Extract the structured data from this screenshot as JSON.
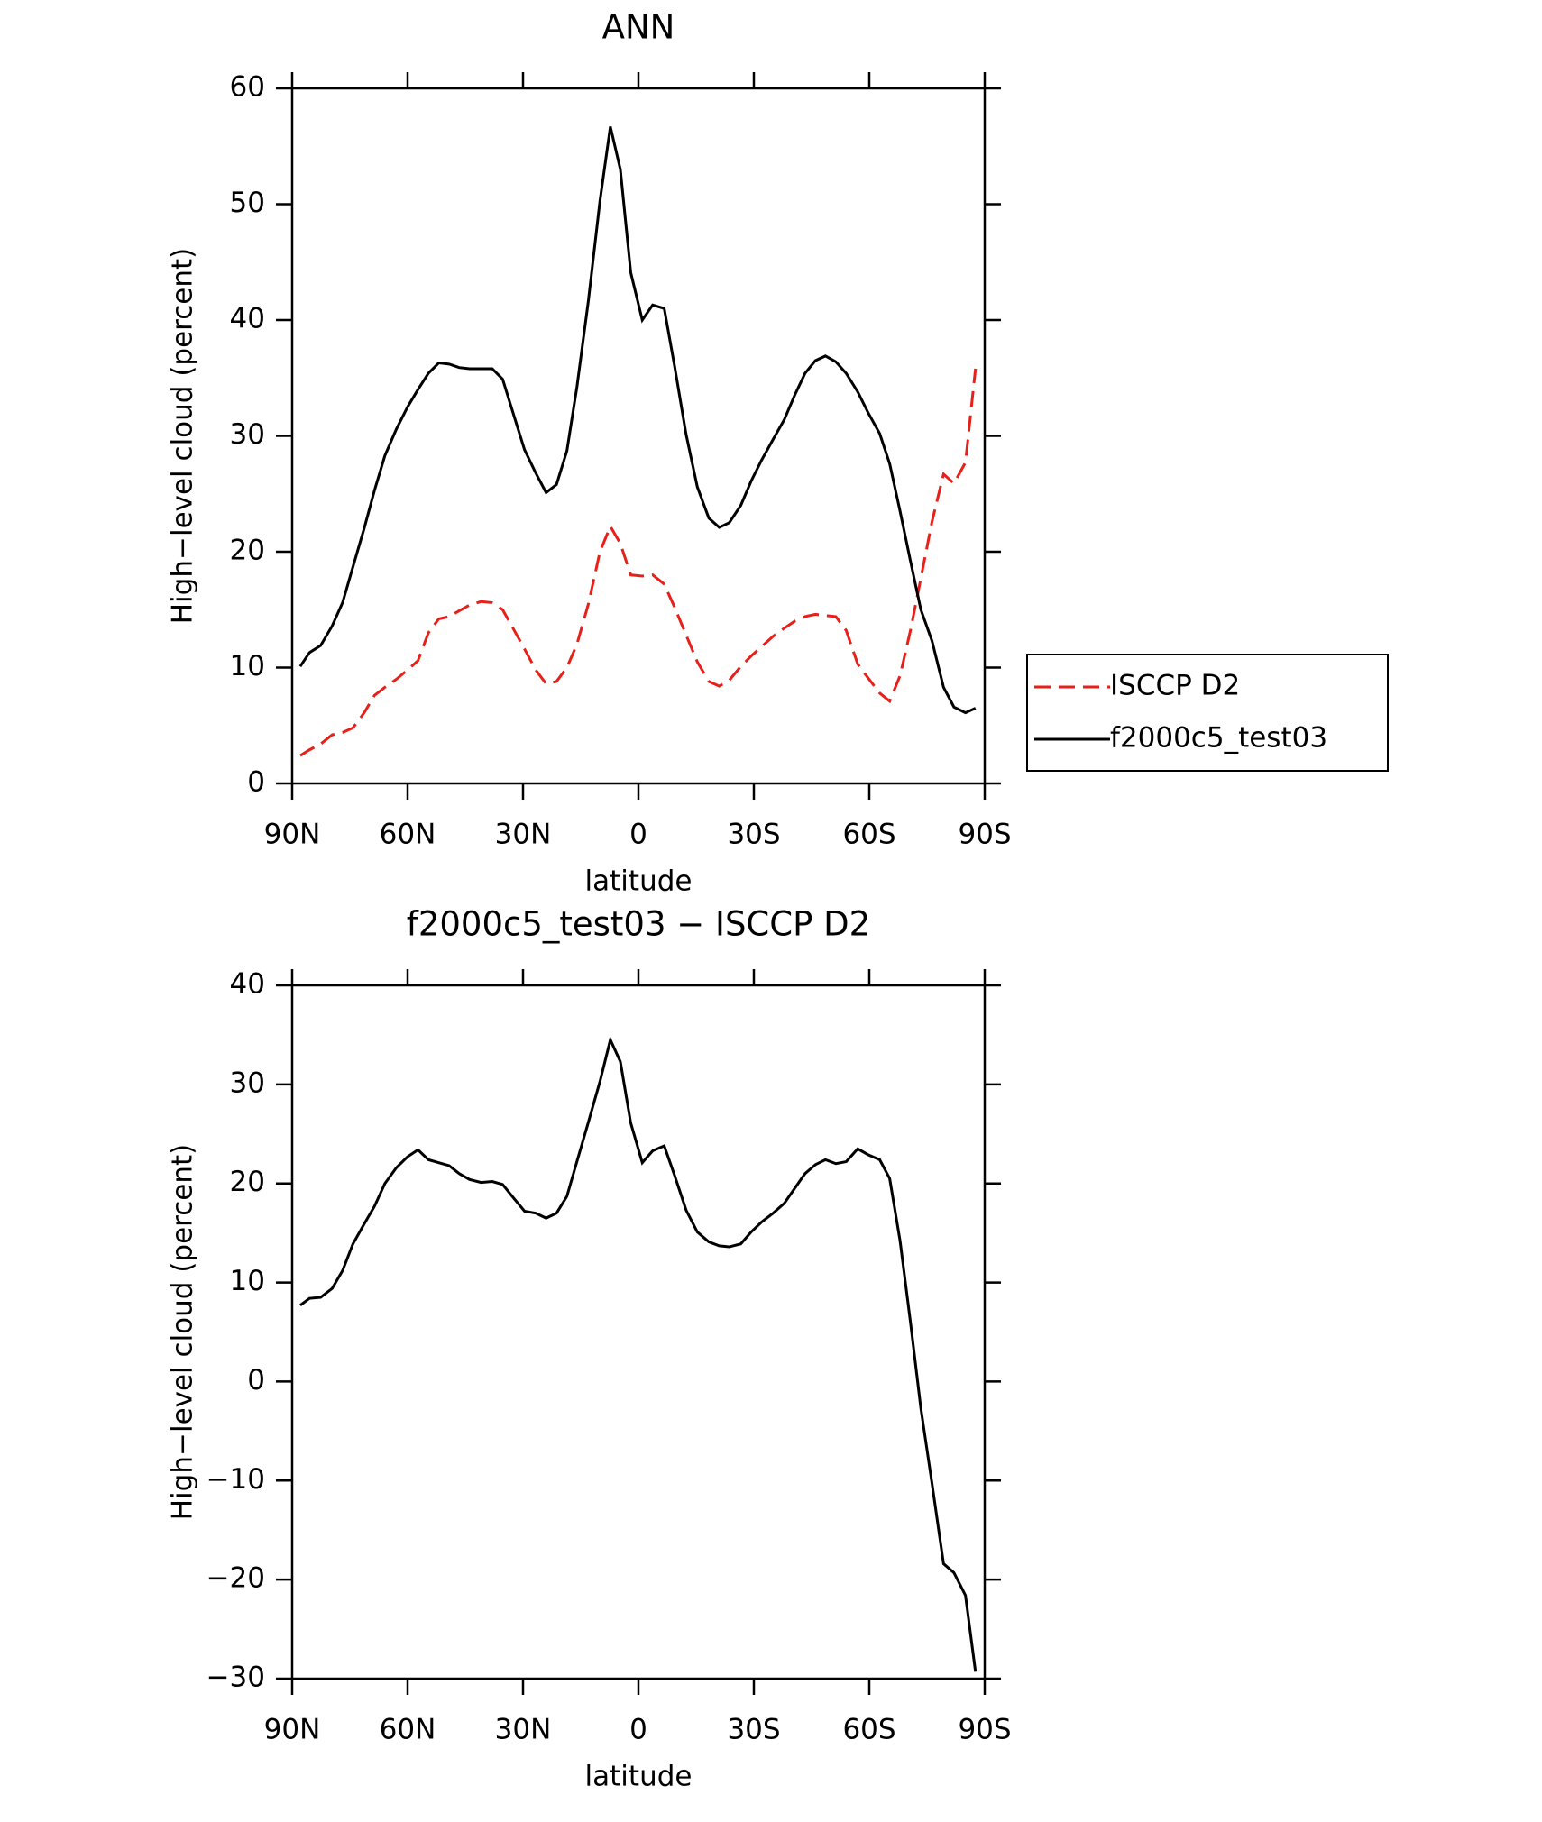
{
  "chart_data": [
    {
      "type": "line",
      "title": "ANN",
      "xlabel": "latitude",
      "ylabel": "High−level cloud (percent)",
      "xlim": [
        90,
        -90
      ],
      "ylim": [
        0,
        60
      ],
      "xticks": [
        {
          "value": 90,
          "label": "90N"
        },
        {
          "value": 60,
          "label": "60N"
        },
        {
          "value": 30,
          "label": "30N"
        },
        0,
        {
          "value": -30,
          "label": "30S"
        },
        {
          "value": -60,
          "label": "60S"
        },
        {
          "value": -90,
          "label": "90S"
        }
      ],
      "yticks": [
        0,
        10,
        20,
        30,
        40,
        50,
        60
      ],
      "legend": "right",
      "x": [
        87.9,
        85.5,
        82.6,
        79.6,
        76.9,
        74.2,
        71.3,
        68.6,
        65.9,
        62.9,
        60.0,
        57.3,
        54.6,
        51.9,
        49.2,
        46.6,
        43.9,
        40.9,
        38.0,
        35.3,
        32.6,
        29.6,
        26.7,
        24.0,
        21.3,
        18.6,
        16.0,
        13.0,
        10.0,
        7.3,
        4.7,
        2.0,
        -1.0,
        -3.7,
        -6.7,
        -9.4,
        -12.4,
        -15.3,
        -18.3,
        -21.0,
        -23.6,
        -26.6,
        -29.3,
        -32.0,
        -35.0,
        -37.9,
        -40.6,
        -43.3,
        -46.0,
        -48.6,
        -51.3,
        -54.0,
        -57.0,
        -59.7,
        -62.7,
        -65.3,
        -68.0,
        -70.7,
        -73.4,
        -76.3,
        -79.3,
        -82.0,
        -85.0,
        -87.6
      ],
      "series": [
        {
          "name": "ISCCP D2",
          "color": "#e8201a",
          "dash": true,
          "values": [
            2.4,
            2.9,
            3.4,
            4.2,
            4.4,
            4.8,
            6.1,
            7.6,
            8.3,
            9.0,
            9.8,
            10.6,
            13.0,
            14.2,
            14.4,
            14.9,
            15.4,
            15.7,
            15.6,
            15.0,
            13.4,
            11.6,
            9.8,
            8.6,
            8.8,
            10.0,
            12.0,
            15.5,
            20.0,
            22.2,
            20.7,
            18.0,
            17.9,
            18.0,
            17.2,
            15.2,
            12.8,
            10.5,
            8.8,
            8.4,
            8.9,
            10.1,
            11.0,
            11.8,
            12.7,
            13.4,
            14.0,
            14.4,
            14.6,
            14.5,
            14.4,
            13.2,
            10.3,
            9.1,
            7.8,
            7.1,
            9.3,
            13.2,
            17.7,
            22.6,
            26.7,
            25.9,
            27.7,
            35.8
          ]
        },
        {
          "name": "f2000c5_test03",
          "color": "#000000",
          "dash": false,
          "values": [
            10.1,
            11.3,
            11.9,
            13.6,
            15.6,
            18.7,
            22.0,
            25.3,
            28.3,
            30.6,
            32.5,
            34.0,
            35.4,
            36.3,
            36.2,
            35.9,
            35.8,
            35.8,
            35.8,
            34.9,
            32.0,
            28.8,
            26.8,
            25.1,
            25.8,
            28.7,
            34.2,
            41.7,
            50.3,
            56.7,
            53.0,
            44.1,
            40.0,
            41.3,
            41.0,
            36.0,
            30.1,
            25.6,
            22.9,
            22.1,
            22.5,
            24.0,
            26.1,
            27.9,
            29.7,
            31.4,
            33.5,
            35.4,
            36.5,
            36.9,
            36.4,
            35.4,
            33.8,
            32.0,
            30.2,
            27.6,
            23.5,
            19.2,
            15.0,
            12.3,
            8.3,
            6.6,
            6.1,
            6.5
          ]
        }
      ]
    },
    {
      "type": "line",
      "title": "f2000c5_test03 − ISCCP D2",
      "xlabel": "latitude",
      "ylabel": "High−level cloud (percent)",
      "xlim": [
        90,
        -90
      ],
      "ylim": [
        -30,
        40
      ],
      "xticks": [
        {
          "value": 90,
          "label": "90N"
        },
        {
          "value": 60,
          "label": "60N"
        },
        {
          "value": 30,
          "label": "30N"
        },
        0,
        {
          "value": -30,
          "label": "30S"
        },
        {
          "value": -60,
          "label": "60S"
        },
        {
          "value": -90,
          "label": "90S"
        }
      ],
      "yticks": [
        {
          "value": -30,
          "label": "−30"
        },
        {
          "value": -20,
          "label": "−20"
        },
        {
          "value": -10,
          "label": "−10"
        },
        0,
        10,
        20,
        30,
        40
      ],
      "x": [
        87.9,
        85.5,
        82.6,
        79.6,
        76.9,
        74.2,
        71.3,
        68.6,
        65.9,
        62.9,
        60.0,
        57.3,
        54.6,
        51.9,
        49.2,
        46.6,
        43.9,
        40.9,
        38.0,
        35.3,
        32.6,
        29.6,
        26.7,
        24.0,
        21.3,
        18.6,
        16.0,
        13.0,
        10.0,
        7.3,
        4.7,
        2.0,
        -1.0,
        -3.7,
        -6.7,
        -9.4,
        -12.4,
        -15.3,
        -18.3,
        -21.0,
        -23.6,
        -26.6,
        -29.3,
        -32.0,
        -35.0,
        -37.9,
        -40.6,
        -43.3,
        -46.0,
        -48.6,
        -51.3,
        -54.0,
        -57.0,
        -59.7,
        -62.7,
        -65.3,
        -68.0,
        -70.7,
        -73.4,
        -76.3,
        -79.3,
        -82.0,
        -85.0,
        -87.6
      ],
      "series": [
        {
          "color": "#000000",
          "values": [
            7.7,
            8.4,
            8.5,
            9.4,
            11.2,
            13.9,
            15.9,
            17.7,
            20.0,
            21.6,
            22.7,
            23.4,
            22.4,
            22.1,
            21.8,
            21.0,
            20.4,
            20.1,
            20.2,
            19.9,
            18.6,
            17.2,
            17.0,
            16.5,
            17.0,
            18.7,
            22.2,
            26.2,
            30.3,
            34.5,
            32.3,
            26.1,
            22.1,
            23.3,
            23.8,
            20.8,
            17.3,
            15.1,
            14.1,
            13.7,
            13.6,
            13.9,
            15.1,
            16.1,
            17.0,
            18.0,
            19.5,
            21.0,
            21.9,
            22.4,
            22.0,
            22.2,
            23.5,
            22.9,
            22.4,
            20.5,
            14.2,
            6.0,
            -2.7,
            -10.3,
            -18.4,
            -19.3,
            -21.6,
            -29.3
          ]
        }
      ]
    }
  ]
}
